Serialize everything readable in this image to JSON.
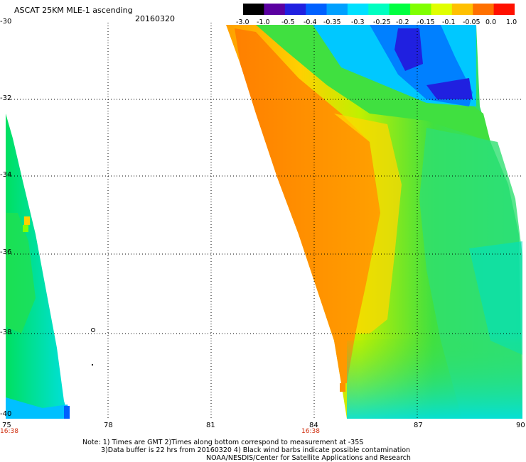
{
  "header": {
    "title": "ASCAT 25KM MLE-1 ascending",
    "date": "20160320"
  },
  "colorbar": {
    "labels": [
      "-3.0",
      "-1.0",
      "-0.5",
      "-0.4",
      "-0.35",
      "-0.3",
      "-0.25",
      "-0.2",
      "-0.15",
      "-0.1",
      "-0.05",
      "0.0",
      "1.0"
    ],
    "colors": [
      "#000000",
      "#5a00a0",
      "#2020e0",
      "#0060ff",
      "#00a0ff",
      "#00e0ff",
      "#00ffc0",
      "#00ff40",
      "#80ff00",
      "#e0ff00",
      "#ffc000",
      "#ff7000",
      "#ff1000"
    ]
  },
  "map": {
    "y_labels": [
      "-30",
      "-32",
      "-34",
      "-36",
      "-38",
      "-40"
    ],
    "x_labels": [
      "75",
      "78",
      "81",
      "84",
      "87",
      "90"
    ],
    "pass_times": [
      "16:38",
      "16:38"
    ]
  },
  "notes": {
    "line1": "Note: 1) Times are GMT 2)Times along bottom correspond to measurement at -35S",
    "line2": "3)Data buffer is 22 hrs from 20160320 4) Black wind barbs indicate possible contamination",
    "line3": "NOAA/NESDIS/Center for Satellite Applications and Research"
  }
}
